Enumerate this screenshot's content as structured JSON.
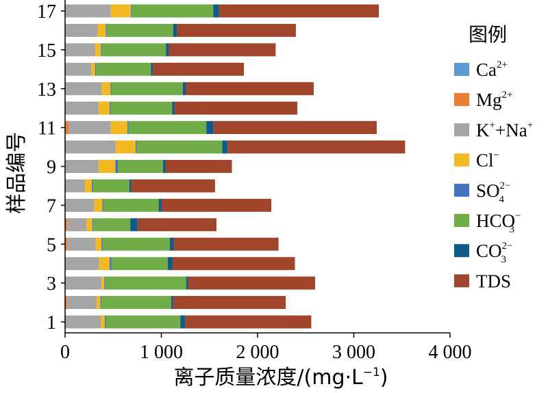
{
  "chart_data": {
    "type": "bar",
    "orientation": "horizontal",
    "stacked": true,
    "title": "",
    "xlabel": "离子质量浓度/(mg·L",
    "xlabel_sup": "−1",
    "xlabel_tail": ")",
    "ylabel": "样品编号",
    "xlim": [
      0,
      4000
    ],
    "x_ticks": [
      {
        "value": 0,
        "label": "0"
      },
      {
        "value": 1000,
        "label": "1 000"
      },
      {
        "value": 2000,
        "label": "2 000"
      },
      {
        "value": 3000,
        "label": "3 000"
      },
      {
        "value": 4000,
        "label": "4 000"
      }
    ],
    "categories": [
      1,
      2,
      3,
      4,
      5,
      6,
      7,
      8,
      9,
      10,
      11,
      12,
      13,
      14,
      15,
      16,
      17
    ],
    "y_tick_labels": [
      {
        "category": 1,
        "label": "1"
      },
      {
        "category": 3,
        "label": "3"
      },
      {
        "category": 5,
        "label": "5"
      },
      {
        "category": 7,
        "label": "7"
      },
      {
        "category": 9,
        "label": "9"
      },
      {
        "category": 11,
        "label": "11"
      },
      {
        "category": 13,
        "label": "13"
      },
      {
        "category": 15,
        "label": "15"
      },
      {
        "category": 17,
        "label": "17"
      }
    ],
    "grid": false,
    "legend": {
      "title": "图例",
      "position": "right",
      "entries": [
        {
          "base": "Ca",
          "sup": "2+",
          "sub": ""
        },
        {
          "base": "Mg",
          "sup": "2+",
          "sub": ""
        },
        {
          "base": "K",
          "sup": "+",
          "sub": "",
          "base2": "+Na",
          "sup2": "+"
        },
        {
          "base": "Cl",
          "sup": "−",
          "sub": ""
        },
        {
          "base": "SO",
          "sup": "2−",
          "sub": "4"
        },
        {
          "base": "HCO",
          "sup": "−",
          "sub": "3"
        },
        {
          "base": "CO",
          "sup": "2−",
          "sub": "3"
        },
        {
          "base": "TDS",
          "sup": "",
          "sub": ""
        }
      ]
    },
    "series": [
      {
        "name": "Ca2+",
        "color": "#5b9bd5",
        "values": [
          3,
          3,
          3,
          3,
          3,
          3,
          3,
          3,
          3,
          3,
          3,
          3,
          3,
          3,
          3,
          3,
          3
        ]
      },
      {
        "name": "Mg2+",
        "color": "#ed7d31",
        "values": [
          5,
          20,
          5,
          5,
          20,
          20,
          5,
          5,
          5,
          5,
          35,
          5,
          5,
          5,
          5,
          5,
          5
        ]
      },
      {
        "name": "K++Na+",
        "color": "#a5a5a5",
        "values": [
          365,
          305,
          370,
          345,
          295,
          200,
          295,
          195,
          340,
          515,
          435,
          340,
          375,
          265,
          305,
          330,
          467
        ]
      },
      {
        "name": "Cl−",
        "color": "#f4b921",
        "values": [
          40,
          40,
          30,
          110,
          60,
          60,
          85,
          75,
          175,
          210,
          175,
          115,
          90,
          40,
          60,
          85,
          210
        ]
      },
      {
        "name": "SO42−",
        "color": "#4472c4",
        "values": [
          10,
          10,
          10,
          20,
          10,
          10,
          10,
          10,
          25,
          10,
          10,
          10,
          10,
          10,
          10,
          10,
          10
        ]
      },
      {
        "name": "HCO3−",
        "color": "#70ad47",
        "values": [
          775,
          725,
          840,
          585,
          700,
          385,
          575,
          380,
          470,
          890,
          810,
          640,
          740,
          570,
          665,
          690,
          845
        ]
      },
      {
        "name": "CO32−",
        "color": "#0e5a8a",
        "values": [
          50,
          20,
          20,
          50,
          40,
          75,
          30,
          20,
          25,
          55,
          75,
          25,
          30,
          20,
          30,
          40,
          60
        ]
      },
      {
        "name": "TDS",
        "color": "#a0442a",
        "values": [
          1310,
          1170,
          1320,
          1270,
          1090,
          820,
          1140,
          870,
          690,
          1845,
          1695,
          1275,
          1330,
          945,
          1110,
          1235,
          1660
        ]
      }
    ]
  }
}
